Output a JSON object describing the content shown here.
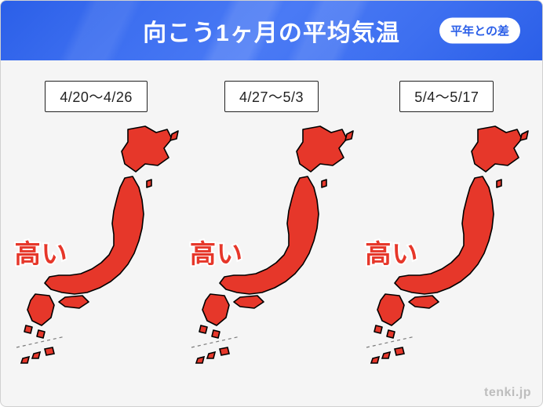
{
  "header": {
    "title": "向こう1ヶ月の平均気温",
    "badge": "平年との差",
    "bg_gradient_colors": [
      "#2b5fe8",
      "#3d6ff0",
      "#4a7af5"
    ],
    "title_color": "#ffffff",
    "title_fontsize": 30,
    "badge_bg": "#ffffff",
    "badge_text_color": "#2b5fe8",
    "badge_fontsize": 15
  },
  "body": {
    "background_color": "#f5f5f5",
    "map_style": {
      "fill_color": "#e6372a",
      "stroke_color": "#000000",
      "stroke_width": 1.6,
      "dashed_divider_color": "#7a7a7a"
    },
    "date_box_style": {
      "bg": "#ffffff",
      "border_color": "#222222",
      "fontsize": 18,
      "text_color": "#222222"
    },
    "label_style": {
      "fontsize": 33,
      "stroke_color": "#ffffff",
      "stroke_width": 4
    }
  },
  "panels": [
    {
      "date_range": "4/20～4/26",
      "label": "高い",
      "label_color": "#e6372a"
    },
    {
      "date_range": "4/27～5/3",
      "label": "高い",
      "label_color": "#e6372a"
    },
    {
      "date_range": "5/4～5/17",
      "label": "高い",
      "label_color": "#e6372a"
    }
  ],
  "watermark": "tenki.jp"
}
